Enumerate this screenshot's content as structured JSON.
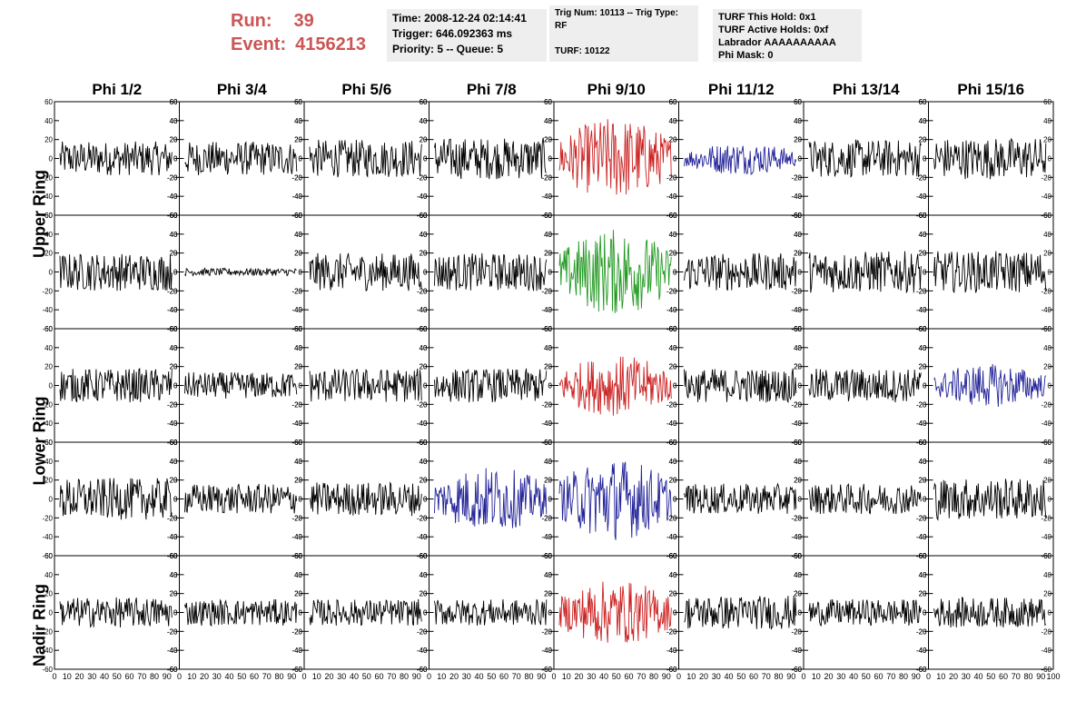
{
  "header": {
    "run_label": "Run:",
    "run_value": "39",
    "event_label": "Event:",
    "event_value": "4156213"
  },
  "time_box": {
    "line1": "Time: 2008-12-24 02:14:41",
    "line2": "Trigger: 646.092363 ms",
    "line3": "Priority: 5 -- Queue: 5"
  },
  "trig_box": {
    "line1": "Trig Num: 10113 -- Trig Type: RF",
    "line2": "TURF: 10122"
  },
  "turf_box": {
    "line1": "TURF This Hold: 0x1",
    "line2": "TURF Active Holds: 0xf",
    "line3": "Labrador AAAAAAAAAA",
    "line4": "Phi Mask: 0"
  },
  "ring_labels": {
    "upper": "Upper Ring",
    "lower": "Lower Ring",
    "nadir": "Nadir Ring"
  },
  "colors": {
    "black": "#000000",
    "red": "#cc2222",
    "blue": "#222299",
    "green": "#229922"
  },
  "chart_data": {
    "type": "line",
    "columns": [
      "Phi 1/2",
      "Phi 3/4",
      "Phi 5/6",
      "Phi 7/8",
      "Phi 9/10",
      "Phi 11/12",
      "Phi 13/14",
      "Phi 15/16"
    ],
    "ylim": [
      -60,
      60
    ],
    "xlim": [
      0,
      100
    ],
    "y_ticks": [
      -60,
      -40,
      -20,
      0,
      20,
      40,
      60
    ],
    "x_tick_labels": [
      "0",
      "10",
      "20",
      "30",
      "40",
      "50",
      "60",
      "70",
      "80",
      "90",
      "100"
    ],
    "grid": false,
    "rows": [
      {
        "ring": "upper",
        "colors": [
          "black",
          "black",
          "black",
          "black",
          "red",
          "blue",
          "black",
          "black"
        ],
        "amplitudes": [
          18,
          18,
          20,
          22,
          38,
          15,
          20,
          22
        ]
      },
      {
        "ring": "upper",
        "colors": [
          "black",
          "black",
          "black",
          "black",
          "green",
          "black",
          "black",
          "black"
        ],
        "amplitudes": [
          20,
          4,
          20,
          20,
          40,
          20,
          22,
          22
        ]
      },
      {
        "ring": "lower",
        "colors": [
          "black",
          "black",
          "black",
          "black",
          "red",
          "black",
          "black",
          "blue"
        ],
        "amplitudes": [
          18,
          14,
          18,
          18,
          28,
          18,
          18,
          20
        ]
      },
      {
        "ring": "lower",
        "colors": [
          "black",
          "black",
          "black",
          "blue",
          "blue",
          "black",
          "black",
          "black"
        ],
        "amplitudes": [
          22,
          16,
          18,
          30,
          38,
          16,
          16,
          22
        ]
      },
      {
        "ring": "nadir",
        "colors": [
          "black",
          "black",
          "black",
          "black",
          "red",
          "black",
          "black",
          "black"
        ],
        "amplitudes": [
          16,
          14,
          14,
          14,
          30,
          18,
          14,
          16
        ]
      }
    ]
  }
}
